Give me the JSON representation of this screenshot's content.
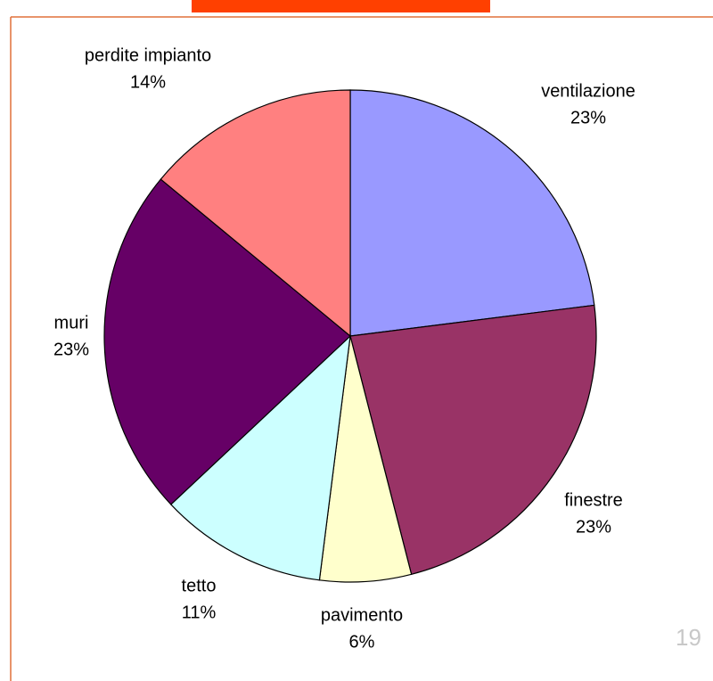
{
  "chart_data": {
    "type": "pie",
    "categories": [
      "ventilazione",
      "finestre",
      "pavimento",
      "tetto",
      "muri",
      "perdite impianto"
    ],
    "values": [
      23,
      23,
      6,
      11,
      23,
      14
    ],
    "value_labels": [
      "23%",
      "23%",
      "6%",
      "11%",
      "23%",
      "14%"
    ],
    "colors": [
      "#9999ff",
      "#993366",
      "#ffffcc",
      "#ccffff",
      "#660066",
      "#ff8080"
    ],
    "start_angle": 0,
    "direction": "clockwise"
  },
  "page_number": "19"
}
